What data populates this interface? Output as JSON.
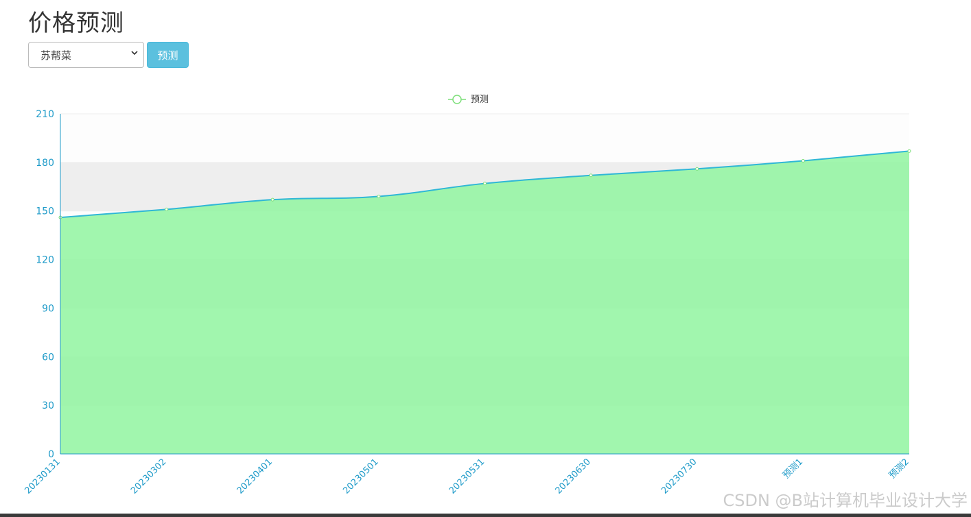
{
  "page": {
    "title": "价格预测",
    "select_value": "苏帮菜",
    "button_label": "预测",
    "watermark": "CSDN @B站计算机毕业设计大学"
  },
  "colors": {
    "area_fill": "#90f5a0",
    "line": "#2fb7d6",
    "axis": "#1f9bc9",
    "point": "#7ddf7a",
    "button": "#5bc0de"
  },
  "chart_data": {
    "type": "area",
    "legend": [
      "预测"
    ],
    "legend_position": "top-center",
    "smooth": true,
    "categories": [
      "20230131",
      "20230302",
      "20230401",
      "20230501",
      "20230531",
      "20230630",
      "20230730",
      "预测1",
      "预测2"
    ],
    "series": [
      {
        "name": "预测",
        "values": [
          146,
          151,
          157,
          159,
          167,
          172,
          176,
          181,
          187
        ]
      }
    ],
    "y_ticks": [
      0,
      30,
      60,
      90,
      120,
      150,
      180,
      210
    ],
    "ylim": [
      0,
      210
    ],
    "split_area": true
  }
}
